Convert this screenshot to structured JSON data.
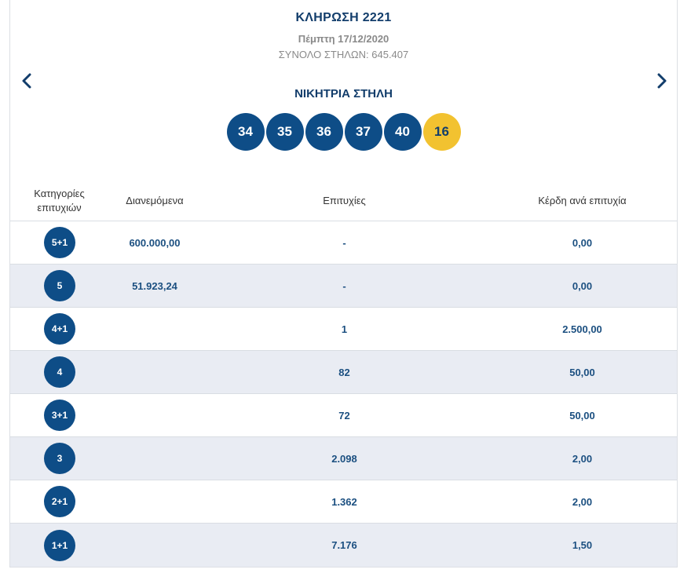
{
  "draw": {
    "title": "ΚΛΗΡΩΣΗ 2221",
    "date": "Πέμπτη 17/12/2020",
    "total_columns_label": "ΣΥΝΟΛΟ ΣΤΗΛΩΝ:",
    "total_columns_value": "645.407"
  },
  "winning": {
    "title": "ΝΙΚΗΤΡΙΑ ΣΤΗΛΗ",
    "numbers": [
      "34",
      "35",
      "36",
      "37",
      "40"
    ],
    "bonus": "16"
  },
  "icons": {
    "prev": "chevron-left-icon",
    "next": "chevron-right-icon"
  },
  "colors": {
    "ball": "#0e4d87",
    "bonus_ball": "#f2c230",
    "text_primary": "#123d6b",
    "row_alt": "#e9ecf3"
  },
  "table": {
    "headers": {
      "category_line1": "Κατηγορίες",
      "category_line2": "επιτυχιών",
      "distributed": "Διανεμόμενα",
      "winners": "Επιτυχίες",
      "prize": "Κέρδη ανά επιτυχία"
    },
    "rows": [
      {
        "category": "5+1",
        "distributed": "600.000,00",
        "winners": "-",
        "prize": "0,00"
      },
      {
        "category": "5",
        "distributed": "51.923,24",
        "winners": "-",
        "prize": "0,00"
      },
      {
        "category": "4+1",
        "distributed": "",
        "winners": "1",
        "prize": "2.500,00"
      },
      {
        "category": "4",
        "distributed": "",
        "winners": "82",
        "prize": "50,00"
      },
      {
        "category": "3+1",
        "distributed": "",
        "winners": "72",
        "prize": "50,00"
      },
      {
        "category": "3",
        "distributed": "",
        "winners": "2.098",
        "prize": "2,00"
      },
      {
        "category": "2+1",
        "distributed": "",
        "winners": "1.362",
        "prize": "2,00"
      },
      {
        "category": "1+1",
        "distributed": "",
        "winners": "7.176",
        "prize": "1,50"
      }
    ]
  }
}
